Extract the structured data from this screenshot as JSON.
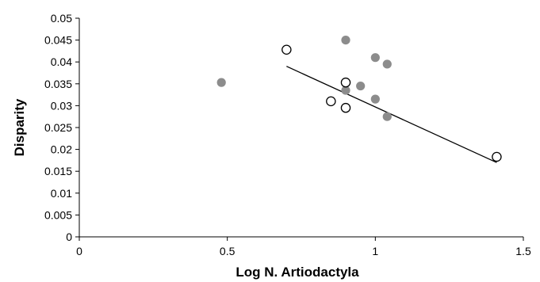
{
  "chart_data": {
    "type": "scatter",
    "xlabel": "Log N. Artiodactyla",
    "ylabel": "Disparity",
    "xlim": [
      0,
      1.5
    ],
    "ylim": [
      0,
      0.05
    ],
    "x_ticks": [
      0,
      0.5,
      1,
      1.5
    ],
    "x_tick_labels": [
      "0",
      "0.5",
      "1",
      "1.5"
    ],
    "y_ticks": [
      0,
      0.005,
      0.01,
      0.015,
      0.02,
      0.025,
      0.03,
      0.035,
      0.04,
      0.045,
      0.05
    ],
    "y_tick_labels": [
      "0",
      "0.005",
      "0.01",
      "0.015",
      "0.02",
      "0.025",
      "0.03",
      "0.035",
      "0.04",
      "0.045",
      "0.05"
    ],
    "grid": false,
    "series": [
      {
        "marker": "filled-circle",
        "color": "#8c8c8c",
        "points": [
          {
            "x": 0.48,
            "y": 0.0353
          },
          {
            "x": 0.9,
            "y": 0.045
          },
          {
            "x": 1.0,
            "y": 0.041
          },
          {
            "x": 1.04,
            "y": 0.0395
          },
          {
            "x": 0.95,
            "y": 0.0345
          },
          {
            "x": 0.9,
            "y": 0.0335
          },
          {
            "x": 1.0,
            "y": 0.0315
          },
          {
            "x": 1.04,
            "y": 0.0275
          }
        ]
      },
      {
        "marker": "open-circle",
        "color": "#000000",
        "points": [
          {
            "x": 0.7,
            "y": 0.0428
          },
          {
            "x": 0.9,
            "y": 0.0353
          },
          {
            "x": 0.85,
            "y": 0.031
          },
          {
            "x": 0.9,
            "y": 0.0295
          },
          {
            "x": 1.41,
            "y": 0.0183
          }
        ]
      }
    ],
    "trendline": {
      "type": "linear",
      "x": [
        0.7,
        1.41
      ],
      "y": [
        0.039,
        0.017
      ],
      "color": "#000000"
    },
    "axis_color": "#000000"
  }
}
